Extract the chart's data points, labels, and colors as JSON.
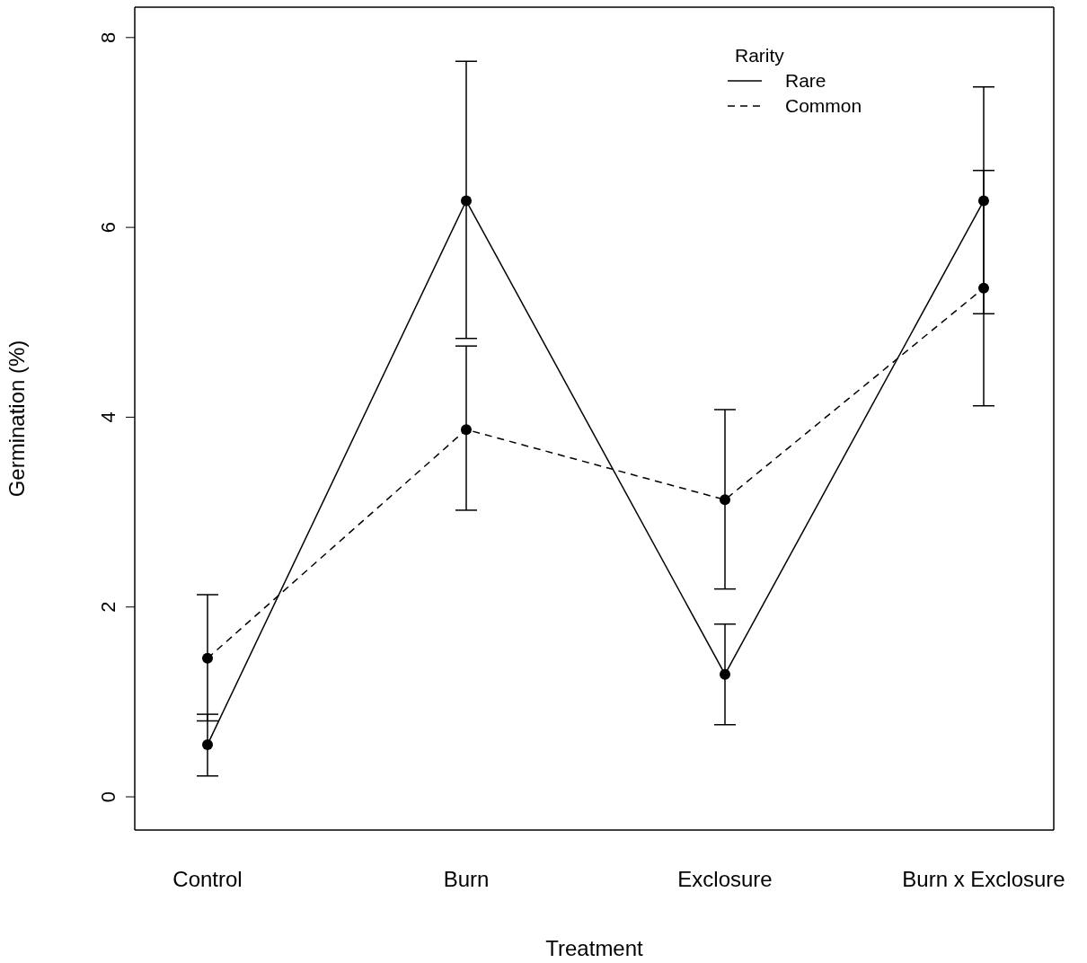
{
  "chart_data": {
    "type": "line",
    "xlabel": "Treatment",
    "ylabel": "Germination (%)",
    "legend_title": "Rarity",
    "categories": [
      "Control",
      "Burn",
      "Exclosure",
      "Burn x Exclosure"
    ],
    "series": [
      {
        "name": "Rare",
        "color": "#000000",
        "line_style": "solid",
        "values": [
          0.55,
          6.28,
          1.29,
          6.28
        ],
        "errors": [
          [
            0.22,
            0.87
          ],
          [
            4.83,
            7.75
          ],
          [
            0.76,
            1.82
          ],
          [
            5.09,
            7.48
          ]
        ]
      },
      {
        "name": "Common",
        "color": "#000000",
        "line_style": "dashed",
        "values": [
          1.46,
          3.87,
          3.13,
          5.36
        ],
        "errors": [
          [
            0.8,
            2.13
          ],
          [
            3.02,
            4.75
          ],
          [
            2.19,
            4.08
          ],
          [
            4.12,
            6.6
          ]
        ]
      }
    ],
    "ylim": [
      -0.35,
      8.32
    ],
    "yticks": [
      0,
      2,
      4,
      6,
      8
    ],
    "grid": false,
    "legend": "top right",
    "marker": "circle"
  }
}
